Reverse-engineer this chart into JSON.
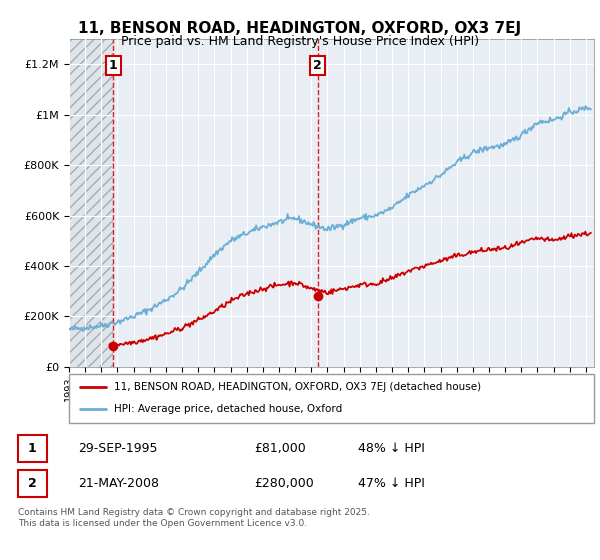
{
  "title": "11, BENSON ROAD, HEADINGTON, OXFORD, OX3 7EJ",
  "subtitle": "Price paid vs. HM Land Registry's House Price Index (HPI)",
  "ylim": [
    0,
    1300000
  ],
  "xlim_start": 1993.0,
  "xlim_end": 2025.5,
  "hpi_color": "#6baed6",
  "price_color": "#cc0000",
  "transaction1_date": 1995.747,
  "transaction1_price": 81000,
  "transaction1_label": "1",
  "transaction2_date": 2008.388,
  "transaction2_price": 280000,
  "transaction2_label": "2",
  "background_color": "#e8eef4",
  "hatch_bg_color": "#dde4ec",
  "legend_line1": "11, BENSON ROAD, HEADINGTON, OXFORD, OX3 7EJ (detached house)",
  "legend_line2": "HPI: Average price, detached house, Oxford",
  "table_row1": [
    "1",
    "29-SEP-1995",
    "£81,000",
    "48% ↓ HPI"
  ],
  "table_row2": [
    "2",
    "21-MAY-2008",
    "£280,000",
    "47% ↓ HPI"
  ],
  "footnote": "Contains HM Land Registry data © Crown copyright and database right 2025.\nThis data is licensed under the Open Government Licence v3.0.",
  "ytick_labels": [
    "£0",
    "£200K",
    "£400K",
    "£600K",
    "£800K",
    "£1M",
    "£1.2M"
  ],
  "ytick_values": [
    0,
    200000,
    400000,
    600000,
    800000,
    1000000,
    1200000
  ],
  "hpi_xknots": [
    1993.0,
    1994.0,
    1995.0,
    1996.0,
    1997.0,
    1998.0,
    1999.0,
    2000.0,
    2001.0,
    2002.0,
    2003.0,
    2004.0,
    2005.0,
    2006.0,
    2007.0,
    2008.0,
    2009.0,
    2010.0,
    2011.0,
    2012.0,
    2013.0,
    2014.0,
    2015.0,
    2016.0,
    2017.0,
    2018.0,
    2019.0,
    2020.0,
    2021.0,
    2022.0,
    2023.0,
    2024.0,
    2025.3
  ],
  "hpi_yknots": [
    148000,
    155000,
    163000,
    178000,
    200000,
    228000,
    265000,
    310000,
    375000,
    445000,
    500000,
    530000,
    555000,
    575000,
    590000,
    565000,
    545000,
    565000,
    590000,
    600000,
    630000,
    680000,
    720000,
    760000,
    810000,
    850000,
    870000,
    880000,
    920000,
    970000,
    980000,
    1010000,
    1030000
  ],
  "price_xknots": [
    1995.5,
    1996.0,
    1997.0,
    1998.0,
    1999.0,
    2000.0,
    2001.0,
    2002.0,
    2003.0,
    2004.0,
    2005.0,
    2006.0,
    2007.0,
    2008.0,
    2009.0,
    2010.0,
    2011.0,
    2012.0,
    2013.0,
    2014.0,
    2015.0,
    2016.0,
    2017.0,
    2018.0,
    2019.0,
    2020.0,
    2021.0,
    2022.0,
    2023.0,
    2024.0,
    2025.3
  ],
  "price_yknots": [
    82000,
    88000,
    98000,
    112000,
    130000,
    155000,
    185000,
    220000,
    260000,
    290000,
    310000,
    325000,
    335000,
    310000,
    295000,
    310000,
    325000,
    330000,
    350000,
    380000,
    400000,
    420000,
    440000,
    455000,
    465000,
    470000,
    490000,
    510000,
    500000,
    520000,
    530000
  ]
}
